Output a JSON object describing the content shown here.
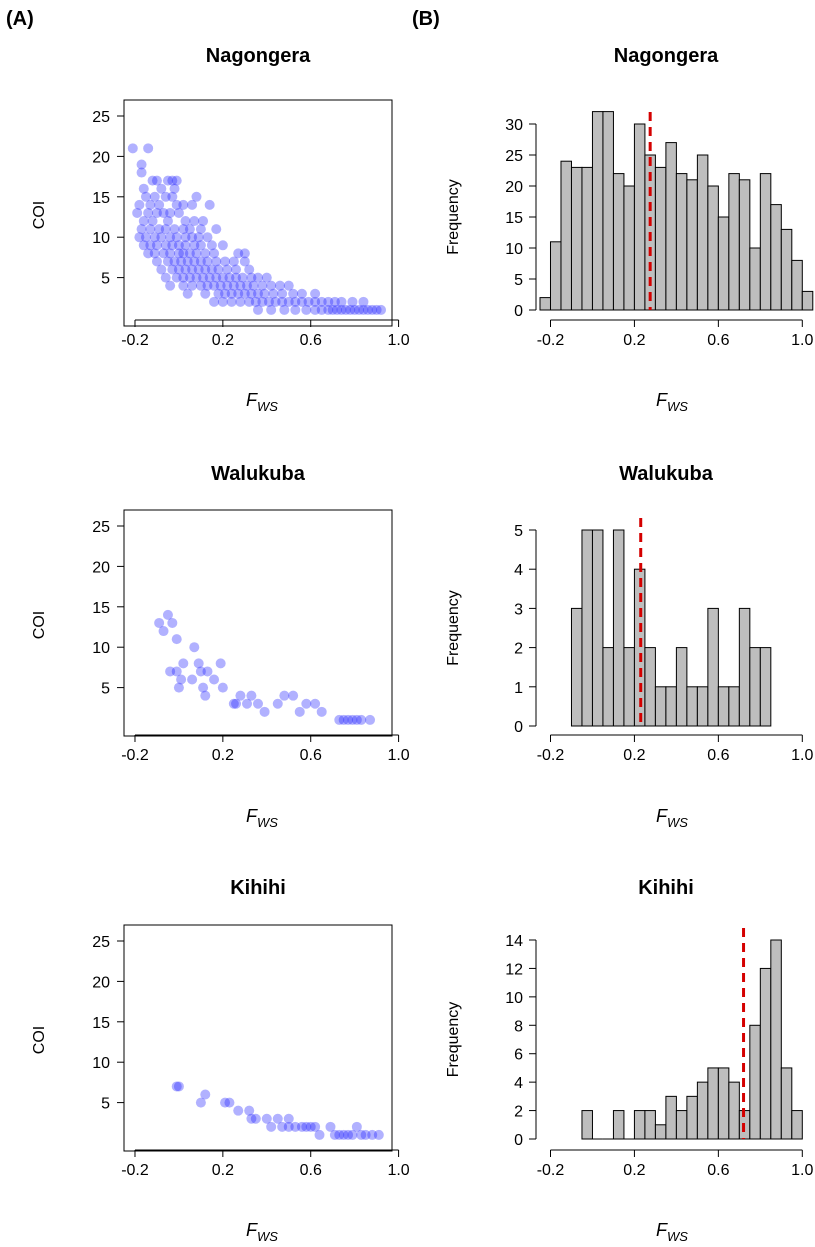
{
  "panel_labels": [
    "(A)",
    "(B)"
  ],
  "colors": {
    "scatter": "#1f1fff",
    "bar_fill": "#bebebe",
    "median_line": "#d40000",
    "axis": "#000000"
  },
  "x_axis": {
    "ticks": [
      "-0.2",
      "0.2",
      "0.6",
      "1.0"
    ],
    "label_main": "F",
    "label_sub": "WS"
  },
  "chart_data": [
    {
      "type": "scatter",
      "panel": "A",
      "title": "Nagongera",
      "xlabel": "F_WS",
      "ylabel": "COI",
      "xlim": [
        -0.25,
        0.97
      ],
      "ylim": [
        0,
        25
      ],
      "yticks": [
        5,
        10,
        15,
        20,
        25
      ],
      "xticks": [
        -0.2,
        0.2,
        0.6,
        1.0
      ],
      "points": [
        [
          -0.21,
          21
        ],
        [
          -0.14,
          21
        ],
        [
          -0.17,
          19
        ],
        [
          -0.17,
          18
        ],
        [
          -0.12,
          17
        ],
        [
          -0.1,
          17
        ],
        [
          -0.05,
          17
        ],
        [
          -0.03,
          17
        ],
        [
          -0.01,
          17
        ],
        [
          -0.16,
          16
        ],
        [
          -0.08,
          16
        ],
        [
          -0.02,
          16
        ],
        [
          -0.15,
          15
        ],
        [
          -0.11,
          15
        ],
        [
          -0.06,
          15
        ],
        [
          -0.03,
          15
        ],
        [
          0.08,
          15
        ],
        [
          -0.18,
          14
        ],
        [
          -0.13,
          14
        ],
        [
          -0.09,
          14
        ],
        [
          -0.01,
          14
        ],
        [
          0.02,
          14
        ],
        [
          0.06,
          14
        ],
        [
          0.14,
          14
        ],
        [
          -0.19,
          13
        ],
        [
          -0.14,
          13
        ],
        [
          -0.1,
          13
        ],
        [
          -0.07,
          13
        ],
        [
          -0.04,
          13
        ],
        [
          0.0,
          13
        ],
        [
          -0.16,
          12
        ],
        [
          -0.12,
          12
        ],
        [
          -0.05,
          12
        ],
        [
          0.03,
          12
        ],
        [
          0.07,
          12
        ],
        [
          0.11,
          12
        ],
        [
          -0.17,
          11
        ],
        [
          -0.13,
          11
        ],
        [
          -0.09,
          11
        ],
        [
          -0.06,
          11
        ],
        [
          -0.02,
          11
        ],
        [
          0.02,
          11
        ],
        [
          0.05,
          11
        ],
        [
          0.1,
          11
        ],
        [
          0.17,
          11
        ],
        [
          -0.18,
          10
        ],
        [
          -0.15,
          10
        ],
        [
          -0.11,
          10
        ],
        [
          -0.08,
          10
        ],
        [
          -0.04,
          10
        ],
        [
          -0.01,
          10
        ],
        [
          0.03,
          10
        ],
        [
          0.06,
          10
        ],
        [
          0.09,
          10
        ],
        [
          0.13,
          10
        ],
        [
          -0.16,
          9
        ],
        [
          -0.13,
          9
        ],
        [
          -0.1,
          9
        ],
        [
          -0.06,
          9
        ],
        [
          -0.03,
          9
        ],
        [
          0.0,
          9
        ],
        [
          0.03,
          9
        ],
        [
          0.07,
          9
        ],
        [
          0.1,
          9
        ],
        [
          0.15,
          9
        ],
        [
          0.2,
          9
        ],
        [
          -0.14,
          8
        ],
        [
          -0.11,
          8
        ],
        [
          -0.07,
          8
        ],
        [
          -0.04,
          8
        ],
        [
          0.0,
          8
        ],
        [
          0.02,
          8
        ],
        [
          0.05,
          8
        ],
        [
          0.08,
          8
        ],
        [
          0.12,
          8
        ],
        [
          0.16,
          8
        ],
        [
          0.27,
          8
        ],
        [
          0.3,
          8
        ],
        [
          -0.1,
          7
        ],
        [
          -0.05,
          7
        ],
        [
          -0.02,
          7
        ],
        [
          0.01,
          7
        ],
        [
          0.04,
          7
        ],
        [
          0.07,
          7
        ],
        [
          0.1,
          7
        ],
        [
          0.13,
          7
        ],
        [
          0.17,
          7
        ],
        [
          0.21,
          7
        ],
        [
          0.25,
          7
        ],
        [
          0.3,
          7
        ],
        [
          -0.08,
          6
        ],
        [
          -0.03,
          6
        ],
        [
          0.0,
          6
        ],
        [
          0.03,
          6
        ],
        [
          0.06,
          6
        ],
        [
          0.09,
          6
        ],
        [
          0.12,
          6
        ],
        [
          0.15,
          6
        ],
        [
          0.18,
          6
        ],
        [
          0.22,
          6
        ],
        [
          0.26,
          6
        ],
        [
          0.32,
          6
        ],
        [
          -0.06,
          5
        ],
        [
          -0.01,
          5
        ],
        [
          0.02,
          5
        ],
        [
          0.05,
          5
        ],
        [
          0.08,
          5
        ],
        [
          0.11,
          5
        ],
        [
          0.14,
          5
        ],
        [
          0.17,
          5
        ],
        [
          0.2,
          5
        ],
        [
          0.23,
          5
        ],
        [
          0.26,
          5
        ],
        [
          0.29,
          5
        ],
        [
          0.33,
          5
        ],
        [
          0.36,
          5
        ],
        [
          0.4,
          5
        ],
        [
          -0.04,
          4
        ],
        [
          0.02,
          4
        ],
        [
          0.06,
          4
        ],
        [
          0.1,
          4
        ],
        [
          0.13,
          4
        ],
        [
          0.16,
          4
        ],
        [
          0.19,
          4
        ],
        [
          0.22,
          4
        ],
        [
          0.25,
          4
        ],
        [
          0.28,
          4
        ],
        [
          0.31,
          4
        ],
        [
          0.34,
          4
        ],
        [
          0.38,
          4
        ],
        [
          0.42,
          4
        ],
        [
          0.46,
          4
        ],
        [
          0.5,
          4
        ],
        [
          0.04,
          3
        ],
        [
          0.12,
          3
        ],
        [
          0.18,
          3
        ],
        [
          0.21,
          3
        ],
        [
          0.24,
          3
        ],
        [
          0.27,
          3
        ],
        [
          0.3,
          3
        ],
        [
          0.33,
          3
        ],
        [
          0.36,
          3
        ],
        [
          0.39,
          3
        ],
        [
          0.43,
          3
        ],
        [
          0.47,
          3
        ],
        [
          0.52,
          3
        ],
        [
          0.56,
          3
        ],
        [
          0.62,
          3
        ],
        [
          0.16,
          2
        ],
        [
          0.2,
          2
        ],
        [
          0.24,
          2
        ],
        [
          0.28,
          2
        ],
        [
          0.32,
          2
        ],
        [
          0.35,
          2
        ],
        [
          0.38,
          2
        ],
        [
          0.41,
          2
        ],
        [
          0.44,
          2
        ],
        [
          0.47,
          2
        ],
        [
          0.5,
          2
        ],
        [
          0.53,
          2
        ],
        [
          0.56,
          2
        ],
        [
          0.59,
          2
        ],
        [
          0.62,
          2
        ],
        [
          0.65,
          2
        ],
        [
          0.68,
          2
        ],
        [
          0.71,
          2
        ],
        [
          0.74,
          2
        ],
        [
          0.79,
          2
        ],
        [
          0.84,
          2
        ],
        [
          0.36,
          1
        ],
        [
          0.42,
          1
        ],
        [
          0.48,
          1
        ],
        [
          0.53,
          1
        ],
        [
          0.58,
          1
        ],
        [
          0.62,
          1
        ],
        [
          0.65,
          1
        ],
        [
          0.68,
          1
        ],
        [
          0.7,
          1
        ],
        [
          0.72,
          1
        ],
        [
          0.74,
          1
        ],
        [
          0.76,
          1
        ],
        [
          0.78,
          1
        ],
        [
          0.8,
          1
        ],
        [
          0.82,
          1
        ],
        [
          0.84,
          1
        ],
        [
          0.86,
          1
        ],
        [
          0.88,
          1
        ],
        [
          0.9,
          1
        ],
        [
          0.92,
          1
        ]
      ]
    },
    {
      "type": "bar",
      "panel": "B",
      "title": "Nagongera",
      "xlabel": "F_WS",
      "ylabel": "Frequency",
      "bin_start": -0.25,
      "bin_width": 0.05,
      "counts": [
        2,
        11,
        24,
        23,
        23,
        32,
        32,
        22,
        20,
        30,
        25,
        23,
        27,
        22,
        21,
        25,
        20,
        15,
        22,
        21,
        10,
        22,
        17,
        13,
        8,
        3
      ],
      "ylim": [
        0,
        32
      ],
      "yticks": [
        0,
        5,
        10,
        15,
        20,
        25,
        30
      ],
      "xticks": [
        -0.2,
        0.2,
        0.6,
        1.0
      ],
      "median": 0.275
    },
    {
      "type": "scatter",
      "panel": "A",
      "title": "Walukuba",
      "xlabel": "F_WS",
      "ylabel": "COI",
      "xlim": [
        -0.25,
        0.97
      ],
      "ylim": [
        0,
        25
      ],
      "yticks": [
        5,
        10,
        15,
        20,
        25
      ],
      "xticks": [
        -0.2,
        0.2,
        0.6,
        1.0
      ],
      "points": [
        [
          -0.09,
          13
        ],
        [
          -0.05,
          14
        ],
        [
          -0.07,
          12
        ],
        [
          -0.03,
          13
        ],
        [
          -0.01,
          11
        ],
        [
          -0.04,
          7
        ],
        [
          -0.01,
          7
        ],
        [
          0.02,
          8
        ],
        [
          0.07,
          10
        ],
        [
          0.09,
          8
        ],
        [
          0.1,
          7
        ],
        [
          0.13,
          7
        ],
        [
          0.01,
          6
        ],
        [
          0.0,
          5
        ],
        [
          0.06,
          6
        ],
        [
          0.16,
          6
        ],
        [
          0.12,
          4
        ],
        [
          0.11,
          5
        ],
        [
          0.19,
          8
        ],
        [
          0.2,
          5
        ],
        [
          0.25,
          3
        ],
        [
          0.26,
          3
        ],
        [
          0.28,
          4
        ],
        [
          0.31,
          3
        ],
        [
          0.33,
          4
        ],
        [
          0.36,
          3
        ],
        [
          0.39,
          2
        ],
        [
          0.45,
          3
        ],
        [
          0.48,
          4
        ],
        [
          0.52,
          4
        ],
        [
          0.55,
          2
        ],
        [
          0.58,
          3
        ],
        [
          0.62,
          3
        ],
        [
          0.65,
          2
        ],
        [
          0.73,
          1
        ],
        [
          0.75,
          1
        ],
        [
          0.77,
          1
        ],
        [
          0.79,
          1
        ],
        [
          0.81,
          1
        ],
        [
          0.83,
          1
        ],
        [
          0.87,
          1
        ]
      ]
    },
    {
      "type": "bar",
      "panel": "B",
      "title": "Walukuba",
      "xlabel": "F_WS",
      "ylabel": "Frequency",
      "bin_start": -0.1,
      "bin_width": 0.05,
      "counts": [
        3,
        5,
        5,
        2,
        5,
        2,
        4,
        2,
        1,
        1,
        2,
        1,
        1,
        3,
        1,
        1,
        3,
        2,
        2
      ],
      "ylim": [
        0,
        5
      ],
      "yticks": [
        0,
        1,
        2,
        3,
        4,
        5
      ],
      "xticks": [
        -0.2,
        0.2,
        0.6,
        1.0
      ],
      "median": 0.23
    },
    {
      "type": "scatter",
      "panel": "A",
      "title": "Kihihi",
      "xlabel": "F_WS",
      "ylabel": "COI",
      "xlim": [
        -0.25,
        0.97
      ],
      "ylim": [
        0,
        25
      ],
      "yticks": [
        5,
        10,
        15,
        20,
        25
      ],
      "xticks": [
        -0.2,
        0.2,
        0.6,
        1.0
      ],
      "points": [
        [
          -0.01,
          7
        ],
        [
          0.0,
          7
        ],
        [
          0.1,
          5
        ],
        [
          0.12,
          6
        ],
        [
          0.21,
          5
        ],
        [
          0.23,
          5
        ],
        [
          0.27,
          4
        ],
        [
          0.32,
          4
        ],
        [
          0.33,
          3
        ],
        [
          0.35,
          3
        ],
        [
          0.4,
          3
        ],
        [
          0.42,
          2
        ],
        [
          0.45,
          3
        ],
        [
          0.47,
          2
        ],
        [
          0.5,
          3
        ],
        [
          0.5,
          2
        ],
        [
          0.53,
          2
        ],
        [
          0.56,
          2
        ],
        [
          0.58,
          2
        ],
        [
          0.6,
          2
        ],
        [
          0.62,
          2
        ],
        [
          0.64,
          1
        ],
        [
          0.69,
          2
        ],
        [
          0.71,
          1
        ],
        [
          0.73,
          1
        ],
        [
          0.75,
          1
        ],
        [
          0.77,
          1
        ],
        [
          0.79,
          1
        ],
        [
          0.81,
          2
        ],
        [
          0.83,
          1
        ],
        [
          0.85,
          1
        ],
        [
          0.88,
          1
        ],
        [
          0.91,
          1
        ]
      ]
    },
    {
      "type": "bar",
      "panel": "B",
      "title": "Kihihi",
      "xlabel": "F_WS",
      "ylabel": "Frequency",
      "bin_start": -0.05,
      "bin_width": 0.05,
      "counts": [
        2,
        0,
        0,
        2,
        0,
        2,
        2,
        1,
        3,
        2,
        3,
        4,
        5,
        5,
        4,
        2,
        8,
        12,
        14,
        5,
        2
      ],
      "ylim": [
        0,
        14
      ],
      "yticks": [
        0,
        2,
        4,
        6,
        8,
        10,
        12,
        14
      ],
      "xticks": [
        -0.2,
        0.2,
        0.6,
        1.0
      ],
      "median": 0.72
    }
  ]
}
